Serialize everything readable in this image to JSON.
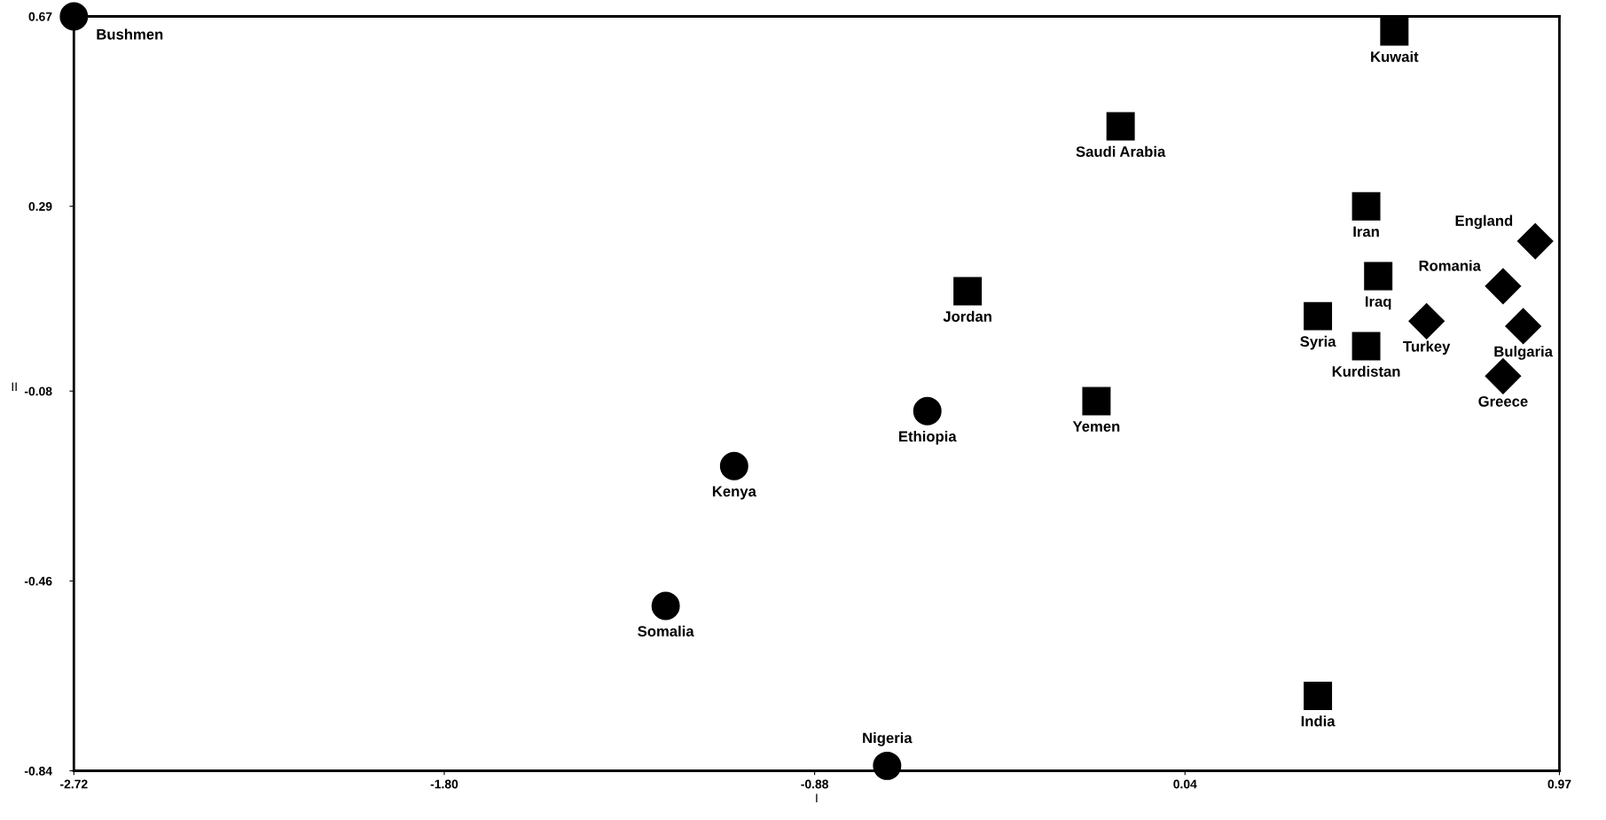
{
  "chart_data": {
    "type": "scatter",
    "xlabel": "I",
    "ylabel": "II",
    "xlim": [
      -2.72,
      0.97
    ],
    "ylim": [
      -0.84,
      0.67
    ],
    "xticks": [
      {
        "value": -2.72,
        "label": "-2.72"
      },
      {
        "value": -1.8,
        "label": "-1.80"
      },
      {
        "value": -0.88,
        "label": "-0.88"
      },
      {
        "value": 0.04,
        "label": "0.04"
      },
      {
        "value": 0.97,
        "label": "0.97"
      }
    ],
    "yticks": [
      {
        "value": 0.67,
        "label": "0.67"
      },
      {
        "value": 0.29,
        "label": "0.29"
      },
      {
        "value": -0.08,
        "label": "-0.08"
      },
      {
        "value": -0.46,
        "label": "-0.46"
      },
      {
        "value": -0.84,
        "label": "-0.84"
      }
    ],
    "grid": false,
    "series": [
      {
        "color": "#000000",
        "marker": "circle",
        "x": [
          -2.72,
          -0.6,
          -1.08,
          -1.25,
          -0.7
        ],
        "values": [
          0.67,
          -0.12,
          -0.23,
          -0.51,
          -0.83
        ]
      },
      {
        "color": "#000000",
        "marker": "square",
        "x": [
          0.56,
          -0.12,
          0.49,
          0.52,
          -0.5,
          0.37,
          0.49,
          -0.18,
          0.37
        ],
        "values": [
          0.64,
          0.45,
          0.29,
          0.15,
          0.12,
          0.07,
          0.01,
          -0.1,
          -0.69
        ]
      },
      {
        "color": "#000000",
        "marker": "diamond",
        "x": [
          0.91,
          0.83,
          0.64,
          0.88,
          0.83
        ],
        "values": [
          0.22,
          0.13,
          0.06,
          0.05,
          -0.05
        ]
      }
    ],
    "annotations": [
      {
        "text": "Bushmen",
        "x": -2.72,
        "y": 0.67
      },
      {
        "text": "Ethiopia",
        "x": -0.6,
        "y": -0.12
      },
      {
        "text": "Kenya",
        "x": -1.08,
        "y": -0.23
      },
      {
        "text": "Somalia",
        "x": -1.25,
        "y": -0.51
      },
      {
        "text": "Nigeria",
        "x": -0.7,
        "y": -0.83
      },
      {
        "text": "Kuwait",
        "x": 0.56,
        "y": 0.64
      },
      {
        "text": "Saudi Arabia",
        "x": -0.12,
        "y": 0.45
      },
      {
        "text": "Iran",
        "x": 0.49,
        "y": 0.29
      },
      {
        "text": "Iraq",
        "x": 0.52,
        "y": 0.15
      },
      {
        "text": "Jordan",
        "x": -0.5,
        "y": 0.12
      },
      {
        "text": "Syria",
        "x": 0.37,
        "y": 0.07
      },
      {
        "text": "Kurdistan",
        "x": 0.49,
        "y": 0.01
      },
      {
        "text": "Yemen",
        "x": -0.18,
        "y": -0.1
      },
      {
        "text": "India",
        "x": 0.37,
        "y": -0.69
      },
      {
        "text": "England",
        "x": 0.91,
        "y": 0.22
      },
      {
        "text": "Romania",
        "x": 0.83,
        "y": 0.13
      },
      {
        "text": "Turkey",
        "x": 0.64,
        "y": 0.06
      },
      {
        "text": "Bulgaria",
        "x": 0.88,
        "y": 0.05
      },
      {
        "text": "Greece",
        "x": 0.83,
        "y": -0.05
      }
    ]
  }
}
